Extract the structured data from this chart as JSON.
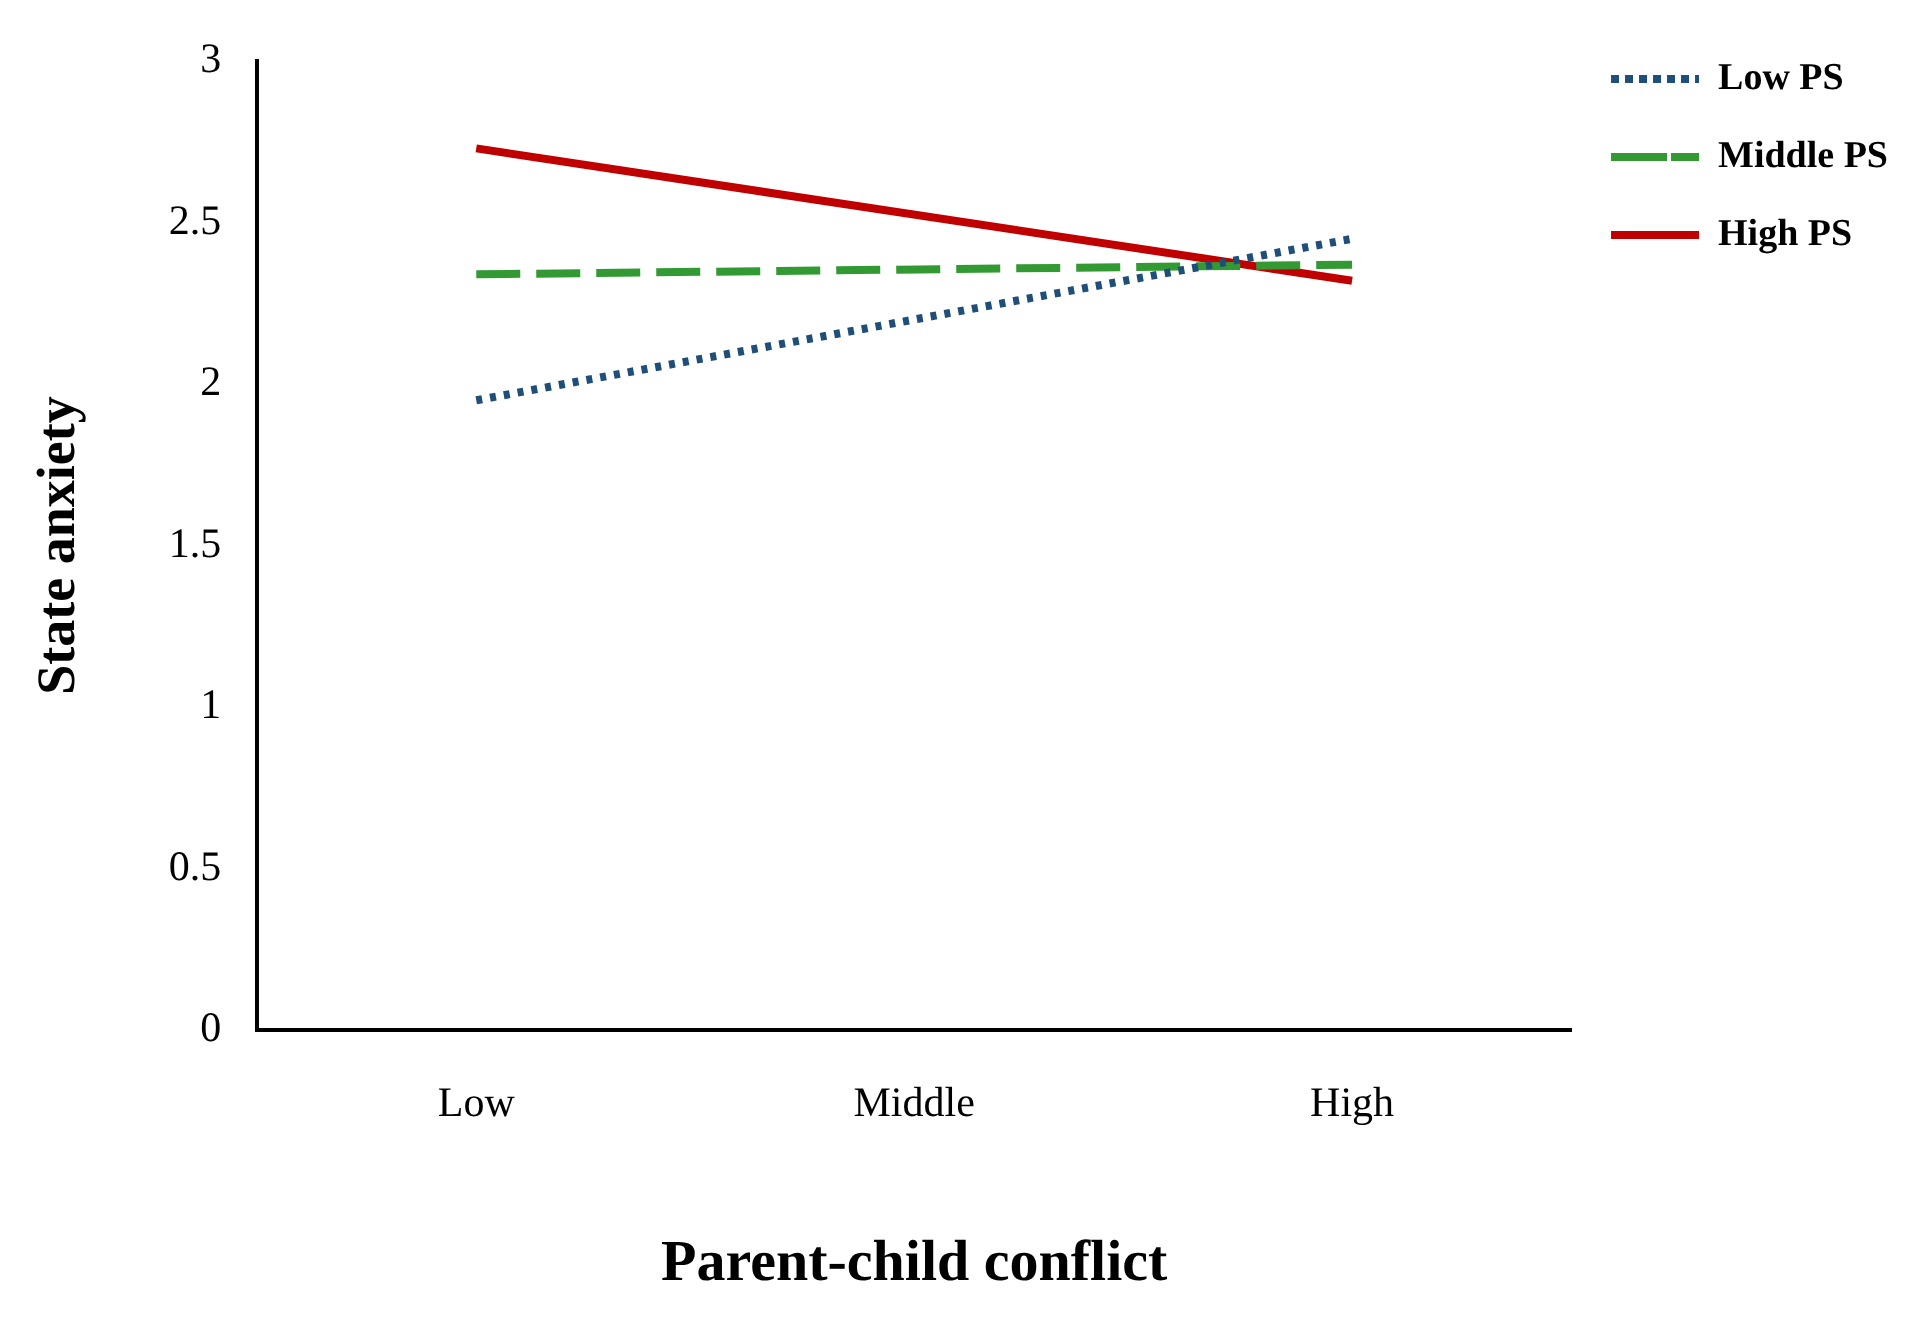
{
  "chart_data": {
    "type": "line",
    "xlabel": "Parent-child conflict",
    "ylabel": "State anxiety",
    "categories": [
      "Low",
      "Middle",
      "High"
    ],
    "series": [
      {
        "name": "Low PS",
        "color": "#1f4e79",
        "values": [
          1.95,
          null,
          2.45
        ],
        "line_style": "dotted"
      },
      {
        "name": "Middle PS",
        "color": "#339933",
        "values": [
          2.34,
          null,
          2.37
        ],
        "line_style": "dashed"
      },
      {
        "name": "High PS",
        "color": "#c00000",
        "values": [
          2.73,
          null,
          2.32
        ],
        "line_style": "solid"
      }
    ],
    "ylim": [
      0,
      3
    ],
    "yticks": [
      0,
      0.5,
      1,
      1.5,
      2,
      2.5,
      3
    ],
    "grid": false,
    "legend": "top right",
    "marker": "none"
  }
}
